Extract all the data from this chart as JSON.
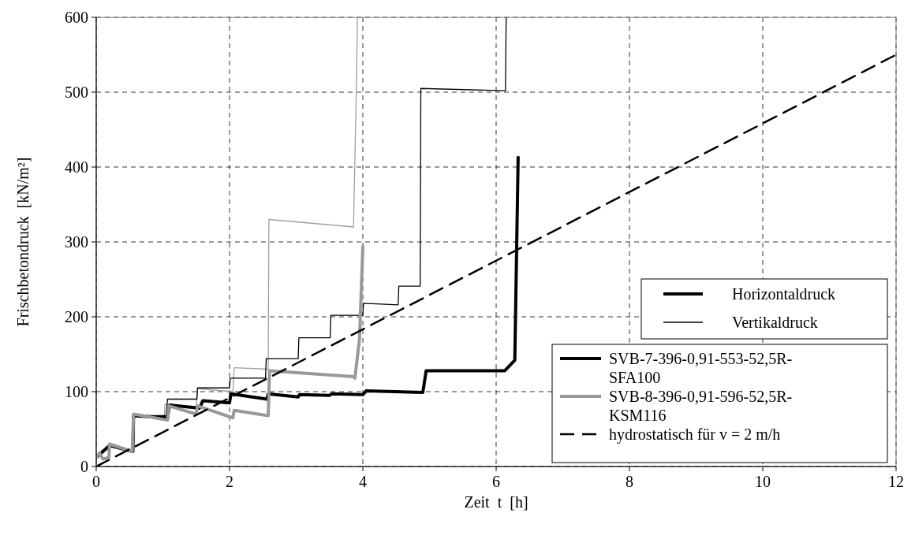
{
  "chart_data": {
    "type": "line",
    "xlabel": "Zeit  t  [h]",
    "ylabel": "Frischbetondruck  [kN/m²]",
    "xlim": [
      0,
      12
    ],
    "ylim": [
      0,
      600
    ],
    "xticks": [
      0,
      2,
      4,
      6,
      8,
      10,
      12
    ],
    "yticks": [
      0,
      100,
      200,
      300,
      400,
      500,
      600
    ],
    "grid": true,
    "legend": "bottom right",
    "annotations": [
      "Horizontaldruck",
      "Vertikaldruck"
    ],
    "series": [
      {
        "color": "#a0a0a0",
        "x": [
          0,
          0.2,
          0.55,
          0.56,
          1.02,
          1.03,
          1.5,
          1.52,
          2.05,
          2.07,
          2.58,
          2.59,
          3.86,
          3.9,
          3.92
        ],
        "values": [
          15,
          30,
          20,
          70,
          63,
          83,
          80,
          104,
          100,
          132,
          130,
          330,
          320,
          494,
          600
        ]
      },
      {
        "color": "#000000",
        "x": [
          0,
          0.2,
          0.55,
          0.56,
          1.05,
          1.07,
          1.51,
          1.52,
          2.0,
          2.01,
          2.54,
          2.55,
          3.03,
          3.04,
          3.51,
          3.52,
          4.0,
          4.01,
          4.53,
          4.54,
          4.86,
          4.87,
          6.14,
          6.15
        ],
        "values": [
          12,
          28,
          22,
          68,
          68,
          90,
          90,
          105,
          105,
          118,
          118,
          144,
          144,
          172,
          172,
          202,
          202,
          218,
          216,
          241,
          241,
          505,
          502,
          600
        ]
      },
      {
        "name": "SVB-7-396-0,91-553-52,5R-SFA100",
        "color": "#000000",
        "x": [
          0,
          0.2,
          0.55,
          0.56,
          1.07,
          1.1,
          1.55,
          1.6,
          2.0,
          2.02,
          2.56,
          2.58,
          3.03,
          3.05,
          3.5,
          3.53,
          4.0,
          4.05,
          4.9,
          4.95,
          6.13,
          6.28,
          6.33
        ],
        "values": [
          12,
          28,
          20,
          68,
          65,
          82,
          78,
          88,
          85,
          97,
          90,
          97,
          93,
          96,
          95,
          97,
          96,
          101,
          99,
          128,
          128,
          142,
          413
        ]
      },
      {
        "name": "SVB-8-396-0,91-596-52,5R-KSM116",
        "color": "#999999",
        "x": [
          0,
          0.05,
          0.1,
          0.19,
          0.2,
          0.54,
          0.56,
          1.07,
          1.09,
          1.5,
          1.52,
          2.05,
          2.07,
          2.58,
          2.6,
          3.86,
          3.88,
          3.95,
          4.0
        ],
        "values": [
          12,
          18,
          10,
          12,
          30,
          20,
          70,
          62,
          81,
          70,
          81,
          65,
          75,
          68,
          128,
          120,
          118,
          170,
          294
        ]
      },
      {
        "name": "hydrostatisch für v = 2 m/h",
        "color": "#000000",
        "line_style": "dashed",
        "x": [
          0,
          12
        ],
        "values": [
          0,
          550
        ]
      }
    ]
  }
}
